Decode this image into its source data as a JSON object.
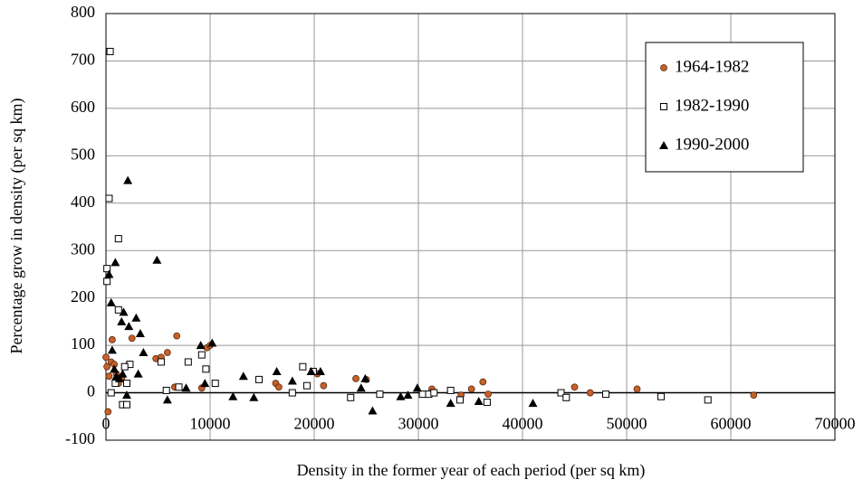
{
  "chart_data": {
    "type": "scatter",
    "x_label": "Density in the former year of each period (per sq km)",
    "y_label": "Percentage grow in density (per sq km)",
    "xlim": [
      0,
      70000
    ],
    "xticks": [
      0,
      10000,
      20000,
      30000,
      40000,
      50000,
      60000,
      70000
    ],
    "ylim": [
      -100,
      800
    ],
    "yticks": [
      -100,
      0,
      100,
      200,
      300,
      400,
      500,
      600,
      700,
      800
    ],
    "grid": true,
    "legend": "upper right",
    "series": [
      {
        "name": "1964-1982",
        "color": "#c8602a",
        "marker": "circle",
        "x": [
          0,
          100,
          200,
          300,
          500,
          600,
          800,
          1000,
          1200,
          1500,
          2200,
          2500,
          4800,
          5300,
          5900,
          6600,
          6800,
          9200,
          9700,
          10000,
          16300,
          16600,
          20300,
          20900,
          24000,
          25000,
          31300,
          34100,
          35100,
          36200,
          36700,
          45000,
          46500,
          51000,
          62200
        ],
        "values": [
          75,
          55,
          -40,
          35,
          65,
          112,
          60,
          40,
          20,
          30,
          60,
          115,
          72,
          75,
          85,
          12,
          120,
          10,
          95,
          100,
          20,
          12,
          40,
          15,
          30,
          28,
          8,
          -5,
          8,
          23,
          -3,
          12,
          0,
          8,
          -5
        ]
      },
      {
        "name": "1982-1990",
        "color": "#ffffff",
        "marker": "square",
        "x": [
          400,
          300,
          100,
          100,
          1200,
          1200,
          500,
          900,
          1600,
          2000,
          2000,
          2300,
          1800,
          5300,
          5800,
          7000,
          7900,
          9200,
          9600,
          10500,
          14700,
          17900,
          18900,
          19300,
          19900,
          23500,
          26300,
          30400,
          31000,
          31500,
          33100,
          34000,
          36600,
          43700,
          44200,
          48000,
          53300,
          57800
        ],
        "values": [
          720,
          410,
          262,
          235,
          325,
          175,
          0,
          20,
          -25,
          -25,
          20,
          60,
          55,
          65,
          5,
          12,
          65,
          80,
          50,
          20,
          28,
          0,
          55,
          15,
          45,
          -10,
          -3,
          -3,
          -3,
          0,
          5,
          -15,
          -20,
          0,
          -10,
          -3,
          -8,
          -15
        ]
      },
      {
        "name": "1990-2000",
        "color": "#000000",
        "marker": "triangle",
        "x": [
          2100,
          4900,
          300,
          500,
          900,
          1500,
          1700,
          2200,
          2900,
          3300,
          3600,
          3100,
          2000,
          600,
          800,
          1000,
          1300,
          1600,
          5900,
          9100,
          10200,
          9500,
          7700,
          12200,
          13200,
          14200,
          16400,
          17900,
          19700,
          20600,
          24500,
          24900,
          25600,
          28300,
          29000,
          29900,
          33100,
          35800,
          41000
        ],
        "values": [
          448,
          280,
          250,
          190,
          275,
          150,
          170,
          140,
          158,
          125,
          85,
          40,
          -5,
          90,
          50,
          35,
          30,
          40,
          -15,
          100,
          105,
          20,
          10,
          -8,
          35,
          -10,
          45,
          25,
          45,
          45,
          10,
          30,
          -38,
          -8,
          -5,
          10,
          -22,
          -18,
          -22
        ]
      }
    ]
  }
}
